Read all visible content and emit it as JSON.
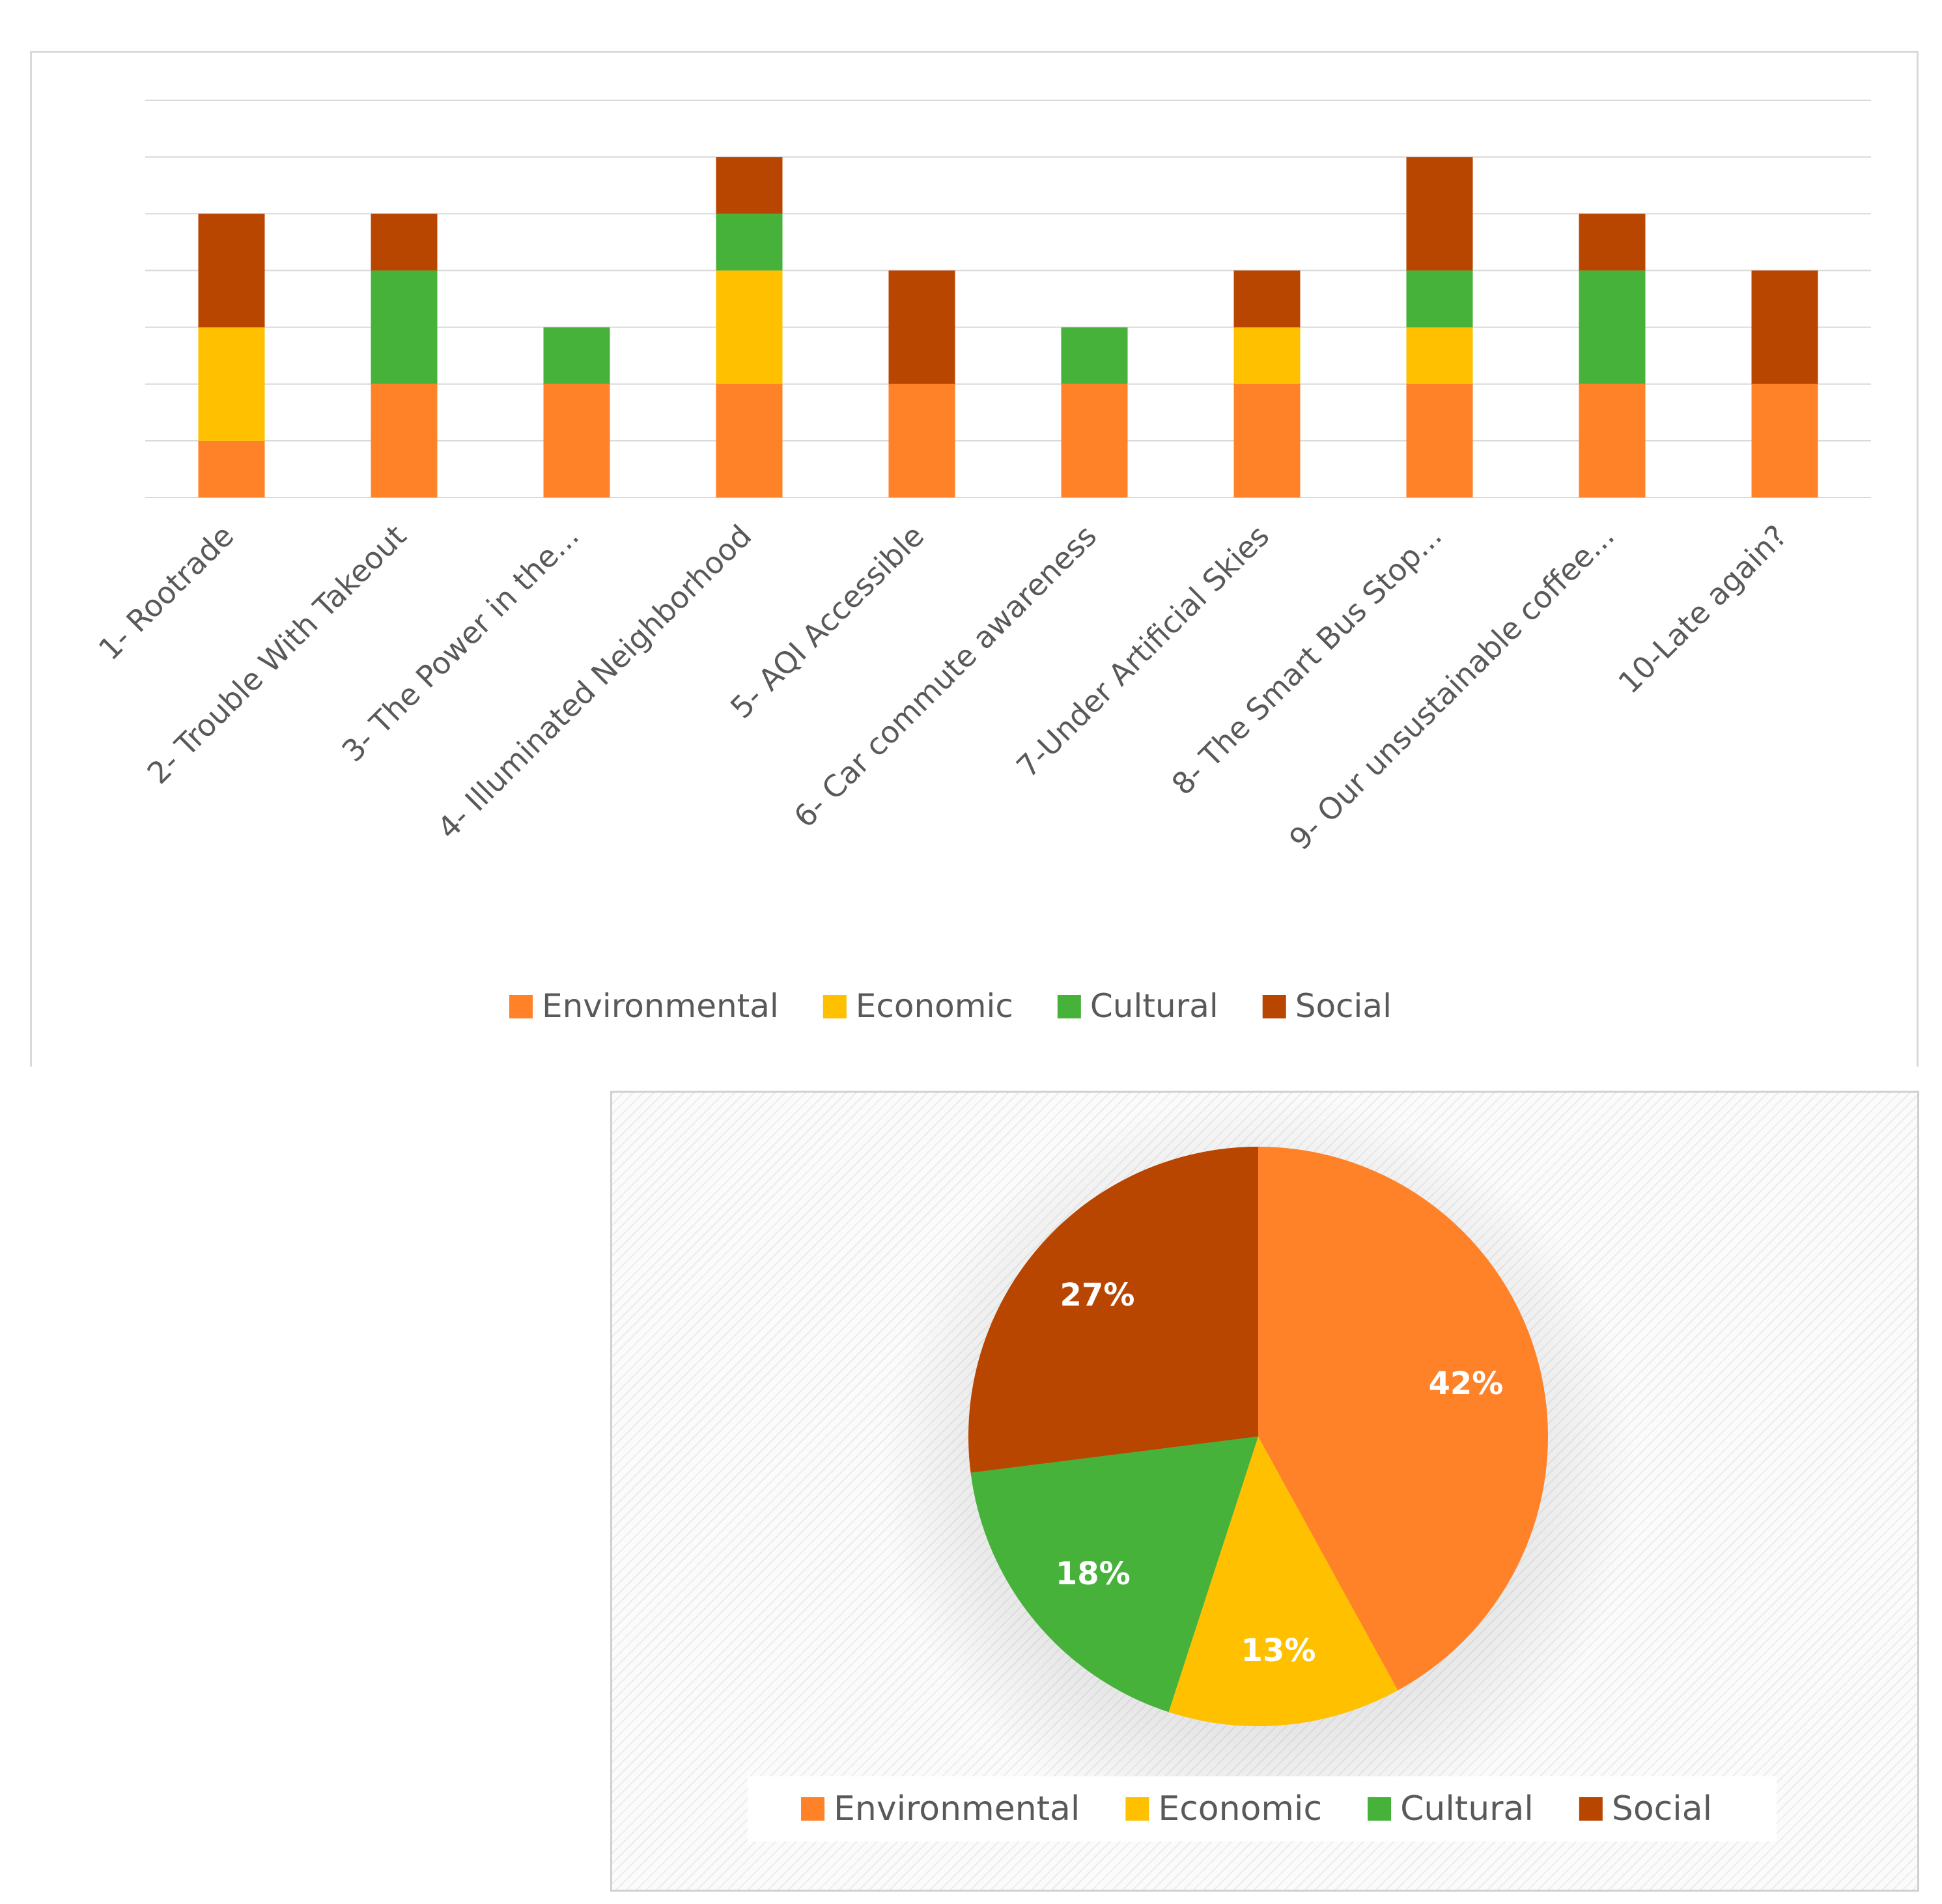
{
  "colors": {
    "Environmental": "#FF8128",
    "Economic": "#FFC000",
    "Cultural": "#46B23A",
    "Social": "#B84500",
    "gridline": "#d9d9d9",
    "axis_text": "#595959"
  },
  "chart_data": [
    {
      "type": "bar",
      "stacked": true,
      "title": "",
      "xlabel": "",
      "ylabel": "",
      "ylim": [
        0,
        7
      ],
      "grid": true,
      "legend_position": "bottom",
      "categories": [
        "1- Rootrade",
        "2- Trouble With Takeout",
        "3- The Power in the...",
        "4- Illuminated Neighborhood",
        "5- AQI Accessible",
        "6- Car commute awareness",
        "7-Under Artificial Skies",
        "8- The Smart Bus Stop...",
        "9- Our unsustainable coffee...",
        "10-Late again?"
      ],
      "series": [
        {
          "name": "Environmental",
          "values": [
            1,
            2,
            2,
            2,
            2,
            2,
            2,
            2,
            2,
            2
          ]
        },
        {
          "name": "Economic",
          "values": [
            2,
            0,
            0,
            2,
            0,
            0,
            1,
            1,
            0,
            0
          ]
        },
        {
          "name": "Cultural",
          "values": [
            0,
            2,
            1,
            1,
            0,
            1,
            0,
            1,
            2,
            0
          ]
        },
        {
          "name": "Social",
          "values": [
            2,
            1,
            0,
            1,
            2,
            0,
            1,
            2,
            1,
            2
          ]
        }
      ]
    },
    {
      "type": "pie",
      "title": "",
      "legend_position": "bottom",
      "categories": [
        "Environmental",
        "Economic",
        "Cultural",
        "Social"
      ],
      "values": [
        42,
        13,
        18,
        27
      ],
      "labels": [
        "42%",
        "13%",
        "18%",
        "27%"
      ]
    }
  ]
}
